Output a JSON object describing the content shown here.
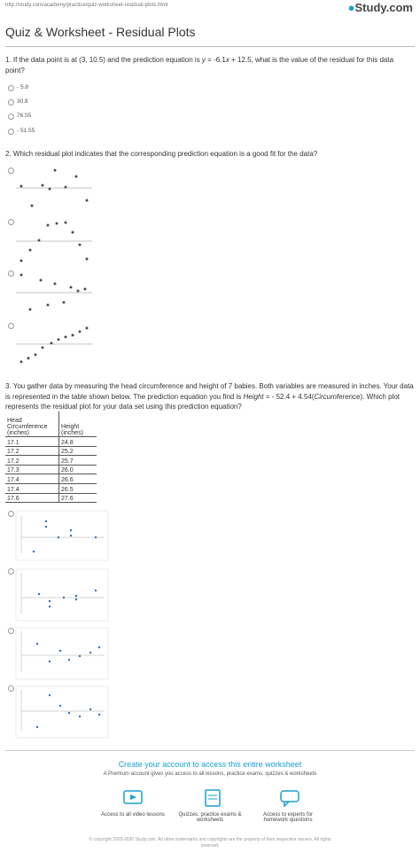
{
  "header": {
    "url": "http://study.com/academy/practice/quiz-worksheet-residual-plots.html",
    "logo": "Study.com",
    "title": "Quiz & Worksheet - Residual Plots"
  },
  "questions": [
    {
      "parts": [
        "1. If the data point is at (3, 10.5) and the prediction equation is ",
        "y",
        " = -6.1",
        "x",
        " + 12.5, what is the value of the residual for this data point?"
      ],
      "options": [
        "- 5.8",
        "30.8",
        "76.55",
        "- 51.55"
      ]
    },
    {
      "text": "2. Which residual plot indicates that the corresponding prediction equation is a good fit for the data?"
    },
    {
      "parts": [
        "3. You gather data by measuring the head circumference and height of 7 babies. Both variables are measured in inches. Your data is represented in the table shown below. The prediction equation you find is ",
        "Height",
        " = - 52.4 + 4.54(",
        "Circumference",
        "). Which plot represents the residual plot for your data set using this prediction equation?"
      ],
      "table": {
        "header": [
          "Head Circumference (inches)",
          "Height (inches)"
        ],
        "rows": [
          [
            "17.1",
            "24.8"
          ],
          [
            "17.2",
            "25.2"
          ],
          [
            "17.2",
            "25.7"
          ],
          [
            "17.3",
            "26.0"
          ],
          [
            "17.4",
            "26.6"
          ],
          [
            "17.4",
            "26.5"
          ],
          [
            "17.6",
            "27.6"
          ]
        ]
      }
    }
  ],
  "footer": {
    "cta": "Create your account to access this entire worksheet",
    "sub": "A Premium account gives you access to all lessons, practice exams, quizzes & worksheets",
    "features": [
      "Access to all video lessons",
      "Quizzes, practice exams & worksheets",
      "Access to experts for homework questions"
    ],
    "copyright": "© copyright 2003-2020 Study.com. All other trademarks and copyrights are the property of their respective owners. All rights reserved."
  }
}
